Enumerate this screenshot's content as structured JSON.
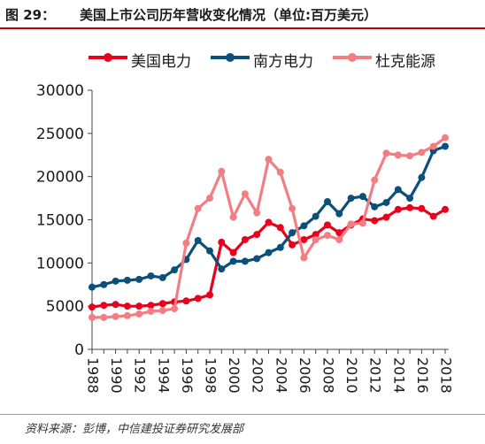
{
  "header": {
    "figure_number": "图 29：",
    "title": "美国上市公司历年营收变化情况（单位:百万美元）"
  },
  "footer": {
    "source": "资料来源：彭博，中信建投证券研究发展部"
  },
  "chart_data": {
    "type": "line",
    "title": "",
    "xlabel": "",
    "ylabel": "",
    "ylim": [
      0,
      30000
    ],
    "yticks": [
      0,
      5000,
      10000,
      15000,
      20000,
      25000,
      30000
    ],
    "xticks": [
      1988,
      1990,
      1992,
      1994,
      1996,
      1998,
      2000,
      2002,
      2004,
      2006,
      2008,
      2010,
      2012,
      2014,
      2016,
      2018
    ],
    "grid": false,
    "legend_position": "top",
    "x": [
      1988,
      1989,
      1990,
      1991,
      1992,
      1993,
      1994,
      1995,
      1996,
      1997,
      1998,
      1999,
      2000,
      2001,
      2002,
      2003,
      2004,
      2005,
      2006,
      2007,
      2008,
      2009,
      2010,
      2011,
      2012,
      2013,
      2014,
      2015,
      2016,
      2017,
      2018
    ],
    "series": [
      {
        "name": "美国电力",
        "color": "#e8001c",
        "values": [
          4900,
          5100,
          5200,
          5000,
          5000,
          5100,
          5300,
          5500,
          5600,
          5900,
          6300,
          12400,
          11200,
          12700,
          13300,
          14700,
          14100,
          12100,
          12700,
          13300,
          14400,
          13500,
          14400,
          15100,
          14900,
          15300,
          16200,
          16400,
          16300,
          15400,
          16200
        ]
      },
      {
        "name": "南方电力",
        "color": "#0b4f7a",
        "values": [
          7200,
          7500,
          7900,
          8000,
          8100,
          8500,
          8300,
          9200,
          10400,
          12600,
          11400,
          9300,
          10200,
          10200,
          10500,
          11200,
          11800,
          13500,
          14300,
          15400,
          17100,
          15700,
          17500,
          17700,
          16500,
          17000,
          18500,
          17500,
          19900,
          23000,
          23500
        ]
      },
      {
        "name": "杜克能源",
        "color": "#f07e83",
        "values": [
          3700,
          3700,
          3800,
          3900,
          4100,
          4400,
          4500,
          4700,
          12300,
          16300,
          17500,
          20600,
          15300,
          18000,
          15800,
          22000,
          20500,
          16300,
          10600,
          12700,
          13200,
          12700,
          14500,
          14600,
          19600,
          22700,
          22500,
          22400,
          22800,
          23500,
          24500
        ]
      }
    ]
  }
}
